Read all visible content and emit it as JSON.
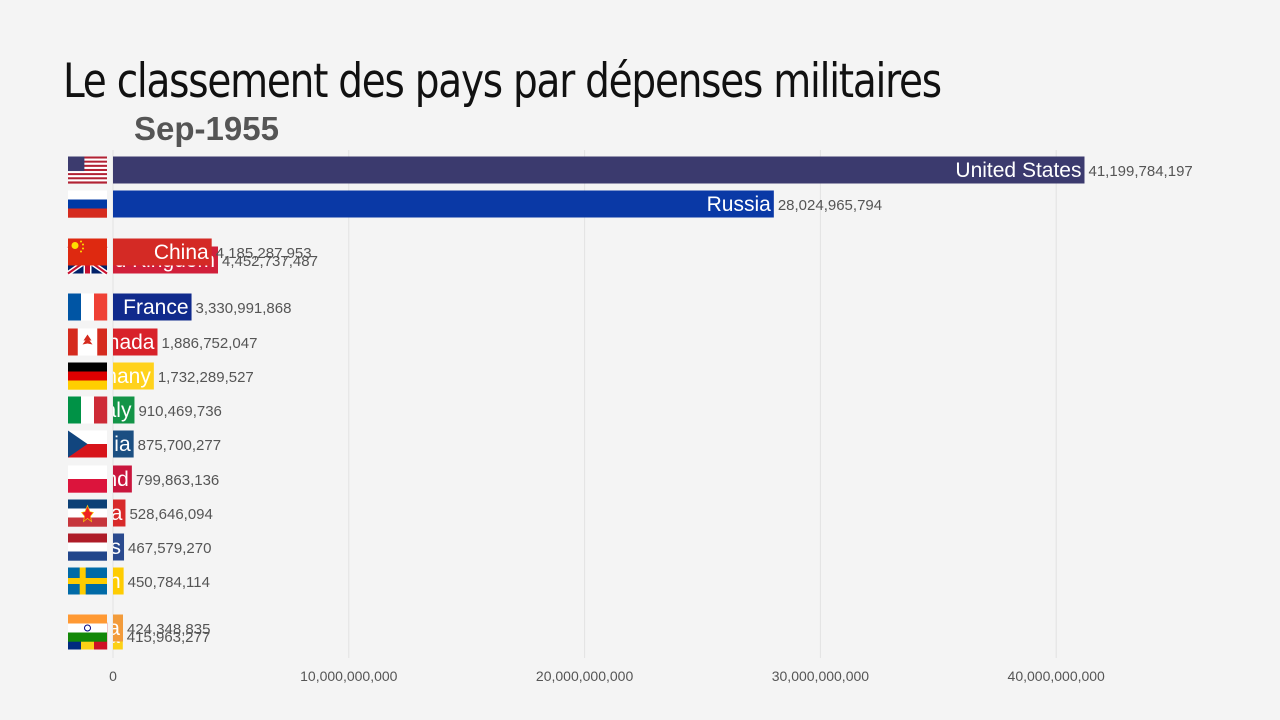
{
  "header": {
    "title": "Le classement des pays par dépenses militaires",
    "date": "Sep-1955"
  },
  "chart_data": {
    "type": "bar",
    "title": "Le classement des pays par dépenses militaires",
    "subtitle": "Sep-1955",
    "xlabel": "",
    "ylabel": "",
    "xlim": [
      0,
      48000000000
    ],
    "grid": true,
    "x_ticks": [
      "0",
      "10,000,000,000",
      "20,000,000,000",
      "30,000,000,000",
      "40,000,000,000"
    ],
    "bars": [
      {
        "label": "United States",
        "value": 41199784197,
        "value_label": "41,199,784,197",
        "color": "#3b3a6e",
        "flag": "us-flag-icon"
      },
      {
        "label": "Russia",
        "value": 28024965794,
        "value_label": "28,024,965,794",
        "color": "#0a39a6",
        "flag": "russia-flag-icon"
      },
      {
        "label": "China",
        "value": 4185287953,
        "value_label": "4,185,287,953",
        "color": "#d42a25",
        "flag": "china-flag-icon"
      },
      {
        "label": "United Kingdom",
        "value": 4452737487,
        "value_label": "4,452,737,487",
        "color": "#d11f3a",
        "flag": "uk-flag-icon"
      },
      {
        "label": "France",
        "value": 3330991868,
        "value_label": "3,330,991,868",
        "color": "#102a8c",
        "flag": "france-flag-icon"
      },
      {
        "label": "Canada",
        "value": 1886752047,
        "value_label": "1,886,752,047",
        "color": "#d8222a",
        "flag": "canada-flag-icon"
      },
      {
        "label": "Germany",
        "value": 1732289527,
        "value_label": "1,732,289,527",
        "color": "#ffd21c",
        "flag": "germany-flag-icon"
      },
      {
        "label": "Italy",
        "value": 910469736,
        "value_label": "910,469,736",
        "color": "#139447",
        "flag": "italy-flag-icon"
      },
      {
        "label": "Czechia",
        "value": 875700277,
        "value_label": "875,700,277",
        "color": "#1b4f82",
        "flag": "czechia-flag-icon"
      },
      {
        "label": "Poland",
        "value": 799863136,
        "value_label": "799,863,136",
        "color": "#c9163d",
        "flag": "poland-flag-icon"
      },
      {
        "label": "Yugoslavia",
        "value": 528646094,
        "value_label": "528,646,094",
        "color": "#d82a2a",
        "flag": "yugoslavia-flag-icon"
      },
      {
        "label": "Netherlands",
        "value": 467579270,
        "value_label": "467,579,270",
        "color": "#2a4a8e",
        "flag": "netherlands-flag-icon"
      },
      {
        "label": "Sweden",
        "value": 450784114,
        "value_label": "450,784,114",
        "color": "#fecc02",
        "flag": "sweden-flag-icon"
      },
      {
        "label": "India",
        "value": 424348835,
        "value_label": "424,348,835",
        "color": "#f29b3b",
        "flag": "india-flag-icon"
      },
      {
        "label": "Romania",
        "value": 415963277,
        "value_label": "415,963,277",
        "color": "#fcd116",
        "flag": "romania-flag-icon"
      }
    ]
  }
}
